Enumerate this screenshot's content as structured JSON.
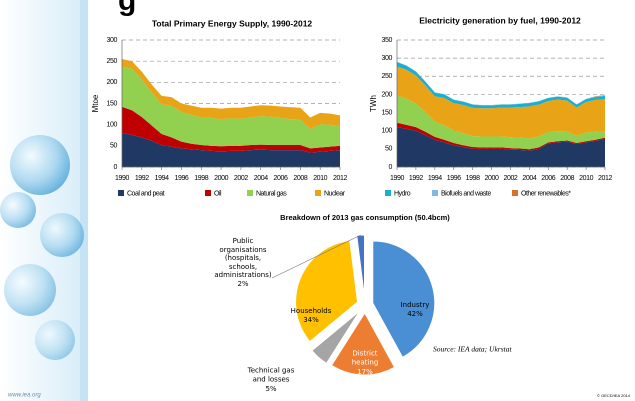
{
  "slide": {
    "title_fragment": "g",
    "website": "www.iea.org",
    "copyright": "© OECD/IEA 2014",
    "source": "Source: IEA data; Ukrstat"
  },
  "chart_data": [
    {
      "type": "area",
      "title": "Total Primary Energy Supply, 1990-2012",
      "y_label": "Mtoe",
      "x": [
        1990,
        1991,
        1992,
        1993,
        1994,
        1995,
        1996,
        1997,
        1998,
        1999,
        2000,
        2001,
        2002,
        2003,
        2004,
        2005,
        2006,
        2007,
        2008,
        2009,
        2010,
        2011,
        2012
      ],
      "xlim": [
        1990,
        2012
      ],
      "xticks": [
        1990,
        1992,
        1994,
        1996,
        1998,
        2000,
        2002,
        2004,
        2006,
        2008,
        2010,
        2012
      ],
      "ylim": [
        0,
        300
      ],
      "yticks": [
        0,
        50,
        100,
        150,
        200,
        250,
        300
      ],
      "grid": true,
      "series": [
        {
          "color": "#1f3864",
          "values": [
            80,
            76,
            70,
            62,
            52,
            48,
            44,
            42,
            40,
            38,
            37,
            38,
            38,
            40,
            41,
            40,
            40,
            40,
            40,
            34,
            36,
            38,
            40
          ]
        },
        {
          "color": "#c00000",
          "values": [
            62,
            58,
            48,
            36,
            26,
            22,
            16,
            13,
            12,
            12,
            12,
            12,
            12,
            12,
            12,
            12,
            12,
            12,
            12,
            10,
            10,
            10,
            10
          ]
        },
        {
          "color": "#92d050",
          "values": [
            95,
            98,
            88,
            78,
            70,
            75,
            70,
            68,
            65,
            66,
            64,
            65,
            64,
            65,
            67,
            67,
            64,
            61,
            60,
            46,
            55,
            52,
            46
          ]
        },
        {
          "color": "#e8a317",
          "values": [
            18,
            18,
            19,
            19,
            20,
            20,
            20,
            22,
            23,
            24,
            25,
            25,
            26,
            26,
            26,
            26,
            27,
            28,
            28,
            27,
            27,
            26,
            26
          ]
        }
      ]
    },
    {
      "type": "area",
      "title": "Electricity generation by fuel, 1990-2012",
      "y_label": "TWh",
      "x": [
        1990,
        1991,
        1992,
        1993,
        1994,
        1995,
        1996,
        1997,
        1998,
        1999,
        2000,
        2001,
        2002,
        2003,
        2004,
        2005,
        2006,
        2007,
        2008,
        2009,
        2010,
        2011,
        2012
      ],
      "xlim": [
        1990,
        2012
      ],
      "xticks": [
        1990,
        1992,
        1994,
        1996,
        1998,
        2000,
        2002,
        2004,
        2006,
        2008,
        2010,
        2012
      ],
      "ylim": [
        0,
        350
      ],
      "yticks": [
        0,
        50,
        100,
        150,
        200,
        250,
        300,
        350
      ],
      "grid": true,
      "series": [
        {
          "name": "Coal and peat",
          "color": "#1f3864",
          "values": [
            110,
            105,
            100,
            88,
            75,
            68,
            60,
            55,
            50,
            50,
            50,
            50,
            48,
            47,
            45,
            50,
            65,
            68,
            70,
            63,
            68,
            72,
            78
          ]
        },
        {
          "name": "Oil",
          "color": "#c00000",
          "values": [
            12,
            11,
            10,
            9,
            8,
            7,
            6,
            5,
            5,
            4,
            4,
            4,
            4,
            4,
            4,
            4,
            3,
            3,
            3,
            3,
            3,
            3,
            3
          ]
        },
        {
          "name": "Natural gas",
          "color": "#92d050",
          "values": [
            75,
            72,
            65,
            55,
            42,
            40,
            35,
            33,
            30,
            30,
            30,
            30,
            30,
            30,
            30,
            30,
            28,
            28,
            25,
            20,
            24,
            22,
            18
          ]
        },
        {
          "name": "Nuclear",
          "color": "#e8a317",
          "values": [
            80,
            80,
            77,
            73,
            70,
            75,
            75,
            78,
            78,
            78,
            78,
            80,
            82,
            84,
            88,
            88,
            86,
            87,
            85,
            78,
            84,
            88,
            88
          ]
        },
        {
          "name": "Hydro",
          "color": "#17b0d0",
          "values": [
            12,
            11,
            11,
            10,
            10,
            10,
            9,
            9,
            9,
            8,
            8,
            8,
            8,
            9,
            9,
            9,
            8,
            8,
            8,
            8,
            8,
            8,
            9
          ]
        },
        {
          "name": "Biofuels and waste",
          "color": "#7fb8e0",
          "values": [
            1,
            1,
            1,
            1,
            1,
            1,
            1,
            1,
            1,
            1,
            1,
            1,
            1,
            1,
            1,
            1,
            1,
            1,
            1,
            1,
            1,
            1,
            1
          ]
        },
        {
          "name": "Other renewables*",
          "color": "#d9702a",
          "values": [
            0,
            0,
            0,
            0,
            0,
            0,
            0,
            0,
            0,
            0,
            0,
            0,
            0,
            0,
            0,
            0,
            0,
            0,
            0,
            0,
            0,
            1,
            1
          ]
        }
      ]
    },
    {
      "type": "pie",
      "title": "Breakdown of 2013 gas consumption (50.4bcm)",
      "labels": [
        "Industry",
        "District\nheating",
        "Technical gas\nand losses",
        "Households",
        "Public\norganisations\n(hospitals,\nschools,\nadministrations)"
      ],
      "values": [
        42,
        17,
        5,
        34,
        2
      ],
      "value_labels": [
        "42%",
        "17%",
        "5%",
        "34%",
        "2%"
      ],
      "colors": [
        "#4a8fd4",
        "#ed7d31",
        "#a5a5a5",
        "#ffc000",
        "#4472c4"
      ]
    }
  ]
}
